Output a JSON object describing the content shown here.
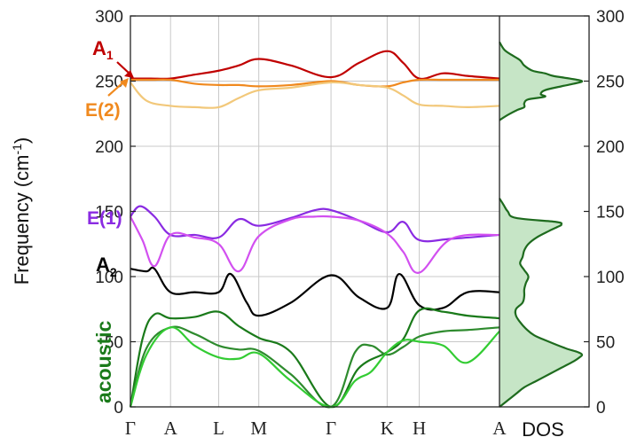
{
  "chart_data": [
    {
      "type": "line",
      "name": "phonon-dispersion",
      "ylabel": "Frequency (cm",
      "ylabel_sup": "-1",
      "ylabel_close": ")",
      "ylim": [
        0,
        300
      ],
      "yticks": [
        0,
        50,
        100,
        150,
        200,
        250,
        300
      ],
      "grid": true,
      "kpoints": [
        {
          "label": "Γ",
          "x": 0
        },
        {
          "label": "A",
          "x": 0.5
        },
        {
          "label": "L",
          "x": 1.1
        },
        {
          "label": "M",
          "x": 1.6
        },
        {
          "label": "Γ",
          "x": 2.5
        },
        {
          "label": "K",
          "x": 3.2
        },
        {
          "label": "H",
          "x": 3.6
        },
        {
          "label": "A",
          "x": 4.6
        }
      ],
      "xlim": [
        0,
        4.6
      ],
      "annotations": [
        {
          "text": "A",
          "sub": "1",
          "color": "#c00000"
        },
        {
          "text": "E(2)",
          "color": "#f0891e"
        },
        {
          "text": "E(1)",
          "color": "#8a2be2"
        },
        {
          "text": "A",
          "sub": "2",
          "color": "#000000"
        },
        {
          "text": "acoustic",
          "color": "#1a7a1a"
        }
      ],
      "series": [
        {
          "color": "#c00000",
          "x": [
            0,
            0.25,
            0.5,
            0.8,
            1.1,
            1.35,
            1.6,
            2.0,
            2.5,
            2.85,
            3.2,
            3.4,
            3.6,
            3.9,
            4.2,
            4.6
          ],
          "y": [
            252,
            252,
            252,
            255,
            258,
            262,
            267,
            262,
            253,
            264,
            273,
            264,
            252,
            256,
            254,
            252
          ]
        },
        {
          "color": "#f0891e",
          "x": [
            0,
            0.25,
            0.5,
            0.8,
            1.1,
            1.35,
            1.6,
            2.0,
            2.5,
            2.85,
            3.2,
            3.4,
            3.6,
            3.9,
            4.2,
            4.6
          ],
          "y": [
            251,
            251,
            251,
            248,
            247,
            247,
            246,
            247,
            250,
            247,
            246,
            249,
            251,
            251,
            251,
            251
          ]
        },
        {
          "color": "#f2c87a",
          "x": [
            0,
            0.2,
            0.5,
            0.8,
            1.1,
            1.35,
            1.6,
            2.0,
            2.5,
            2.85,
            3.2,
            3.4,
            3.6,
            3.9,
            4.2,
            4.6
          ],
          "y": [
            249,
            235,
            231,
            230,
            230,
            237,
            243,
            245,
            249,
            247,
            245,
            239,
            232,
            231,
            230,
            231
          ]
        },
        {
          "color": "#8a2be2",
          "x": [
            0,
            0.12,
            0.3,
            0.5,
            0.8,
            1.1,
            1.35,
            1.6,
            2.0,
            2.3,
            2.5,
            2.85,
            3.2,
            3.4,
            3.6,
            4.0,
            4.6
          ],
          "y": [
            146,
            154,
            146,
            132,
            132,
            130,
            144,
            139,
            145,
            151,
            151,
            143,
            134,
            142,
            128,
            129,
            132
          ]
        },
        {
          "color": "#d250f0",
          "x": [
            0,
            0.15,
            0.3,
            0.5,
            0.8,
            1.1,
            1.35,
            1.6,
            2.0,
            2.3,
            2.5,
            2.85,
            3.2,
            3.4,
            3.6,
            4.0,
            4.6
          ],
          "y": [
            146,
            128,
            108,
            132,
            130,
            125,
            104,
            131,
            144,
            146,
            146,
            143,
            133,
            119,
            103,
            129,
            132
          ]
        },
        {
          "color": "#000000",
          "x": [
            0,
            0.2,
            0.3,
            0.5,
            0.8,
            1.1,
            1.25,
            1.45,
            1.6,
            2.0,
            2.5,
            2.85,
            3.2,
            3.35,
            3.6,
            3.9,
            4.2,
            4.6
          ],
          "y": [
            106,
            104,
            106,
            88,
            88,
            88,
            102,
            80,
            70,
            80,
            101,
            84,
            76,
            102,
            78,
            76,
            88,
            88
          ]
        },
        {
          "color": "#1a7a1a",
          "x": [
            0,
            0.15,
            0.3,
            0.5,
            0.8,
            1.1,
            1.35,
            1.6,
            2.0,
            2.5,
            2.85,
            3.2,
            3.4,
            3.6,
            3.9,
            4.2,
            4.6
          ],
          "y": [
            0,
            52,
            71,
            68,
            69,
            73,
            62,
            53,
            42,
            0,
            30,
            42,
            52,
            74,
            73,
            70,
            68
          ]
        },
        {
          "color": "#2e8b2e",
          "x": [
            0,
            0.2,
            0.5,
            0.8,
            1.1,
            1.35,
            1.6,
            2.0,
            2.5,
            2.8,
            3.0,
            3.2,
            3.4,
            3.6,
            3.9,
            4.2,
            4.6
          ],
          "y": [
            0,
            45,
            61,
            56,
            47,
            44,
            43,
            25,
            0,
            42,
            47,
            40,
            46,
            54,
            58,
            59,
            61
          ]
        },
        {
          "color": "#33cc33",
          "x": [
            0,
            0.2,
            0.5,
            0.8,
            1.1,
            1.35,
            1.6,
            2.0,
            2.5,
            2.8,
            3.0,
            3.2,
            3.4,
            3.6,
            3.9,
            4.2,
            4.6
          ],
          "y": [
            0,
            40,
            61,
            47,
            38,
            37,
            41,
            20,
            0,
            20,
            27,
            42,
            51,
            50,
            47,
            34,
            58
          ]
        }
      ]
    },
    {
      "type": "area",
      "name": "density-of-states",
      "xlabel": "DOS",
      "ylim": [
        0,
        300
      ],
      "yticks": [
        0,
        50,
        100,
        150,
        200,
        250,
        300
      ],
      "fill_color": "#c6e5c6",
      "line_color": "#1e6b1e",
      "blocks": [
        {
          "y": [
            0,
            5,
            10,
            15,
            20,
            25,
            30,
            35,
            38,
            40,
            42,
            45,
            50,
            55,
            60,
            65,
            70,
            75,
            80,
            85,
            90,
            95,
            100,
            105,
            110,
            115,
            120,
            125,
            130,
            135,
            138,
            140,
            142,
            145,
            150,
            155,
            160
          ],
          "x": [
            0,
            0.1,
            0.2,
            0.3,
            0.45,
            0.6,
            0.75,
            0.9,
            0.97,
            1.0,
            0.95,
            0.8,
            0.6,
            0.42,
            0.32,
            0.25,
            0.2,
            0.2,
            0.28,
            0.3,
            0.3,
            0.32,
            0.35,
            0.3,
            0.25,
            0.28,
            0.3,
            0.35,
            0.45,
            0.6,
            0.7,
            0.75,
            0.68,
            0.2,
            0.1,
            0.05,
            0
          ]
        },
        {
          "y": [
            220,
            224,
            228,
            230,
            233,
            236,
            238,
            240,
            243,
            246,
            248,
            250,
            252,
            254,
            256,
            258,
            262,
            266,
            270,
            274,
            280
          ],
          "x": [
            0,
            0.1,
            0.22,
            0.3,
            0.3,
            0.35,
            0.55,
            0.5,
            0.55,
            0.75,
            0.9,
            1.0,
            0.85,
            0.65,
            0.55,
            0.4,
            0.3,
            0.25,
            0.15,
            0.06,
            0
          ]
        }
      ]
    }
  ]
}
